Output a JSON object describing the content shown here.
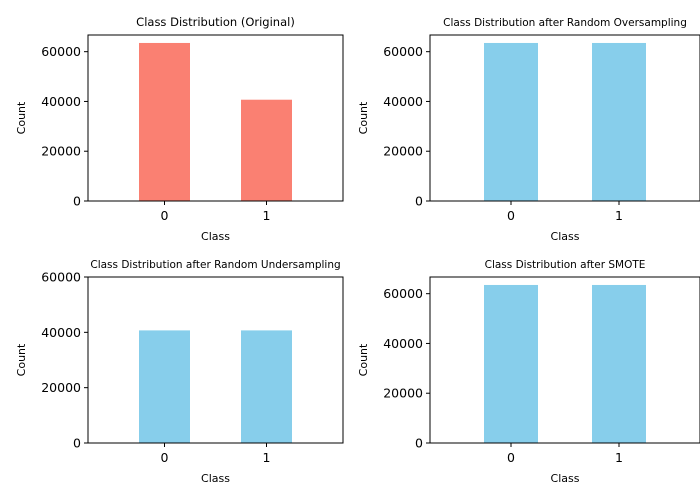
{
  "chart_data": [
    {
      "type": "bar",
      "title": "Class Distribution (Original)",
      "xlabel": "Class",
      "ylabel": "Count",
      "categories": [
        "0",
        "1"
      ],
      "values": [
        63500,
        40700
      ],
      "ylim": [
        0,
        66700
      ],
      "yticks": [
        0,
        20000,
        40000,
        60000
      ],
      "bar_color": "#FA8072"
    },
    {
      "type": "bar",
      "title": "Class Distribution after Random Oversampling",
      "xlabel": "Class",
      "ylabel": "Count",
      "categories": [
        "0",
        "1"
      ],
      "values": [
        63500,
        63500
      ],
      "ylim": [
        0,
        66700
      ],
      "yticks": [
        0,
        20000,
        40000,
        60000
      ],
      "bar_color": "#87CEEB"
    },
    {
      "type": "bar",
      "title": "Class Distribution after Random Undersampling",
      "xlabel": "Class",
      "ylabel": "Count",
      "categories": [
        "0",
        "1"
      ],
      "values": [
        40700,
        40700
      ],
      "ylim": [
        0,
        60000
      ],
      "yticks": [
        0,
        20000,
        40000,
        60000
      ],
      "bar_color": "#87CEEB"
    },
    {
      "type": "bar",
      "title": "Class Distribution after SMOTE",
      "xlabel": "Class",
      "ylabel": "Count",
      "categories": [
        "0",
        "1"
      ],
      "values": [
        63500,
        63500
      ],
      "ylim": [
        0,
        66700
      ],
      "yticks": [
        0,
        20000,
        40000,
        60000
      ],
      "bar_color": "#87CEEB"
    }
  ]
}
